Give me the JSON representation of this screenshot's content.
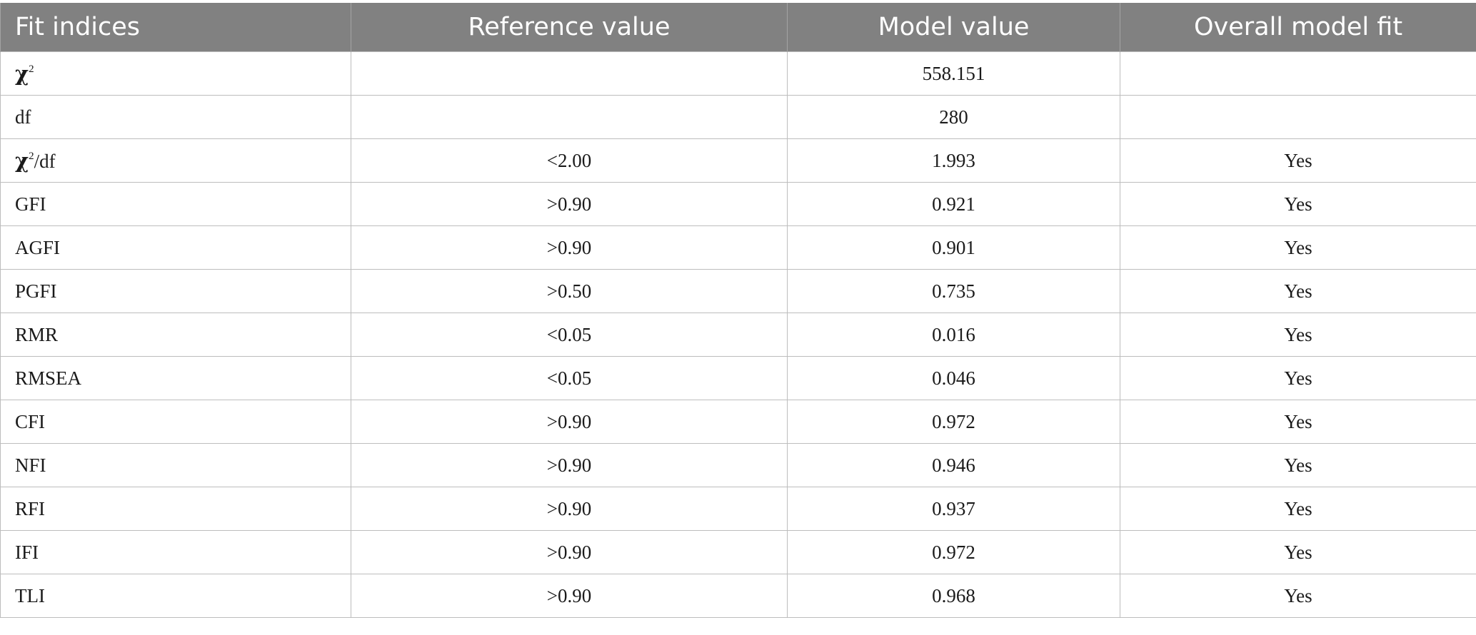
{
  "table": {
    "headers": [
      "Fit indices",
      "Reference value",
      "Model value",
      "Overall model fit"
    ],
    "rows": [
      {
        "index": "χ",
        "index_sup": "2",
        "index_suffix": "",
        "reference": "",
        "model": "558.151",
        "fit": ""
      },
      {
        "index": "df",
        "index_sup": "",
        "index_suffix": "",
        "reference": "",
        "model": "280",
        "fit": ""
      },
      {
        "index": "χ",
        "index_sup": "2",
        "index_suffix": "/df",
        "reference": "<2.00",
        "model": "1.993",
        "fit": "Yes"
      },
      {
        "index": "GFI",
        "index_sup": "",
        "index_suffix": "",
        "reference": ">0.90",
        "model": "0.921",
        "fit": "Yes"
      },
      {
        "index": "AGFI",
        "index_sup": "",
        "index_suffix": "",
        "reference": ">0.90",
        "model": "0.901",
        "fit": "Yes"
      },
      {
        "index": "PGFI",
        "index_sup": "",
        "index_suffix": "",
        "reference": ">0.50",
        "model": "0.735",
        "fit": "Yes"
      },
      {
        "index": "RMR",
        "index_sup": "",
        "index_suffix": "",
        "reference": "<0.05",
        "model": "0.016",
        "fit": "Yes"
      },
      {
        "index": "RMSEA",
        "index_sup": "",
        "index_suffix": "",
        "reference": "<0.05",
        "model": "0.046",
        "fit": "Yes"
      },
      {
        "index": "CFI",
        "index_sup": "",
        "index_suffix": "",
        "reference": ">0.90",
        "model": "0.972",
        "fit": "Yes"
      },
      {
        "index": "NFI",
        "index_sup": "",
        "index_suffix": "",
        "reference": ">0.90",
        "model": "0.946",
        "fit": "Yes"
      },
      {
        "index": "RFI",
        "index_sup": "",
        "index_suffix": "",
        "reference": ">0.90",
        "model": "0.937",
        "fit": "Yes"
      },
      {
        "index": "IFI",
        "index_sup": "",
        "index_suffix": "",
        "reference": ">0.90",
        "model": "0.972",
        "fit": "Yes"
      },
      {
        "index": "TLI",
        "index_sup": "",
        "index_suffix": "",
        "reference": ">0.90",
        "model": "0.968",
        "fit": "Yes"
      }
    ]
  },
  "colors": {
    "header_bg": "#818181",
    "header_text": "#ffffff",
    "grid_line": "#bdbdbd"
  }
}
